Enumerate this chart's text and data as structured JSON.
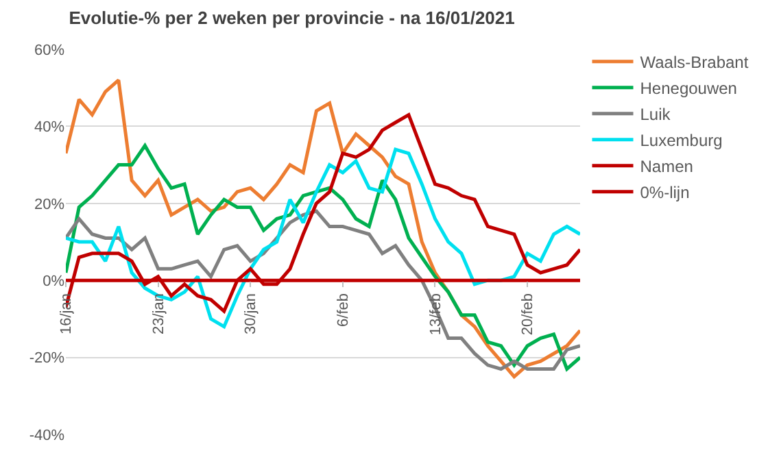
{
  "chart_data": {
    "type": "line",
    "title": "Evolutie-% per 2 weken per provincie - na 16/01/2021",
    "x": [
      "2021-01-16",
      "2021-01-17",
      "2021-01-18",
      "2021-01-19",
      "2021-01-20",
      "2021-01-21",
      "2021-01-22",
      "2021-01-23",
      "2021-01-24",
      "2021-01-25",
      "2021-01-26",
      "2021-01-27",
      "2021-01-28",
      "2021-01-29",
      "2021-01-30",
      "2021-01-31",
      "2021-02-01",
      "2021-02-02",
      "2021-02-03",
      "2021-02-04",
      "2021-02-05",
      "2021-02-06",
      "2021-02-07",
      "2021-02-08",
      "2021-02-09",
      "2021-02-10",
      "2021-02-11",
      "2021-02-12",
      "2021-02-13",
      "2021-02-14",
      "2021-02-15",
      "2021-02-16",
      "2021-02-17",
      "2021-02-18",
      "2021-02-19",
      "2021-02-20",
      "2021-02-21",
      "2021-02-22",
      "2021-02-23",
      "2021-02-24"
    ],
    "series": [
      {
        "name": "Waals-Brabant",
        "color": "#ed7d31",
        "values": [
          33,
          47,
          43,
          49,
          52,
          26,
          22,
          26,
          17,
          19,
          21,
          18,
          19,
          23,
          24,
          21,
          25,
          30,
          28,
          44,
          46,
          33,
          38,
          35,
          32,
          27,
          25,
          10,
          2,
          -3,
          -9,
          -12,
          -17,
          -21,
          -25,
          -22,
          -21,
          -19,
          -17,
          -13
        ]
      },
      {
        "name": "Henegouwen",
        "color": "#00b050",
        "values": [
          2,
          19,
          22,
          26,
          30,
          30,
          35,
          29,
          24,
          25,
          12,
          17,
          21,
          19,
          19,
          13,
          16,
          17,
          22,
          23,
          24,
          21,
          16,
          14,
          26,
          21,
          11,
          6,
          1,
          -3,
          -9,
          -9,
          -16,
          -17,
          -22,
          -17,
          -15,
          -14,
          -23,
          -20
        ]
      },
      {
        "name": "Luik",
        "color": "#808080",
        "values": [
          11,
          16,
          12,
          11,
          11,
          8,
          11,
          3,
          3,
          4,
          5,
          1,
          8,
          9,
          5,
          7,
          11,
          15,
          17,
          18,
          14,
          14,
          13,
          12,
          7,
          9,
          4,
          0,
          -7,
          -15,
          -15,
          -19,
          -22,
          -23,
          -21,
          -23,
          -23,
          -23,
          -18,
          -17
        ]
      },
      {
        "name": "Luxemburg",
        "color": "#00e0ef",
        "values": [
          11,
          10,
          10,
          5,
          14,
          2,
          -2,
          -4,
          -5,
          -3,
          1,
          -10,
          -12,
          -4,
          3,
          8,
          10,
          21,
          15,
          23,
          30,
          28,
          31,
          24,
          23,
          34,
          33,
          25,
          16,
          10,
          7,
          -1,
          0,
          0,
          1,
          7,
          5,
          12,
          14,
          12
        ]
      },
      {
        "name": "Namen",
        "color": "#c00000",
        "values": [
          -7,
          6,
          7,
          7,
          7,
          5,
          -1,
          1,
          -4,
          -1,
          -4,
          -5,
          -8,
          0,
          3,
          -1,
          -1,
          3,
          12,
          20,
          23,
          33,
          32,
          34,
          39,
          41,
          43,
          34,
          25,
          24,
          22,
          21,
          14,
          13,
          12,
          4,
          2,
          3,
          4,
          8
        ]
      },
      {
        "name": "0%-lijn",
        "color": "#c00000",
        "values": [
          0,
          0,
          0,
          0,
          0,
          0,
          0,
          0,
          0,
          0,
          0,
          0,
          0,
          0,
          0,
          0,
          0,
          0,
          0,
          0,
          0,
          0,
          0,
          0,
          0,
          0,
          0,
          0,
          0,
          0,
          0,
          0,
          0,
          0,
          0,
          0,
          0,
          0,
          0,
          0
        ]
      }
    ],
    "xlim": [
      "2021-01-16",
      "2021-02-24"
    ],
    "xticks": [
      {
        "value": "2021-01-16",
        "label": "16/jan"
      },
      {
        "value": "2021-01-23",
        "label": "23/jan"
      },
      {
        "value": "2021-01-30",
        "label": "30/jan"
      },
      {
        "value": "2021-02-06",
        "label": "6/feb"
      },
      {
        "value": "2021-02-13",
        "label": "13/feb"
      },
      {
        "value": "2021-02-20",
        "label": "20/feb"
      }
    ],
    "ylim": [
      -40,
      60
    ],
    "yticks": [
      {
        "value": -40,
        "label": "-40%"
      },
      {
        "value": -20,
        "label": "-20%"
      },
      {
        "value": 0,
        "label": "0%"
      },
      {
        "value": 20,
        "label": "20%"
      },
      {
        "value": 40,
        "label": "40%"
      },
      {
        "value": 60,
        "label": "60%"
      }
    ],
    "grid": "y",
    "legend": "top right",
    "marker": "none",
    "line_style": "solid"
  }
}
